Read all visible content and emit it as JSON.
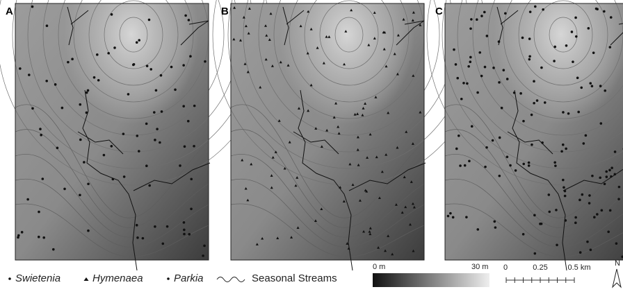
{
  "panels": [
    {
      "label": "A"
    },
    {
      "label": "B"
    },
    {
      "label": "C"
    }
  ],
  "legend": {
    "species": [
      "Swietenia",
      "Hymenaea",
      "Parkia"
    ],
    "streams": "Seasonal Streams"
  },
  "elevation_bar": {
    "min": "0 m",
    "max": "30 m"
  },
  "scale_bar": {
    "ticks": [
      "0",
      "0.25",
      "0.5 km"
    ]
  },
  "north": "N"
}
